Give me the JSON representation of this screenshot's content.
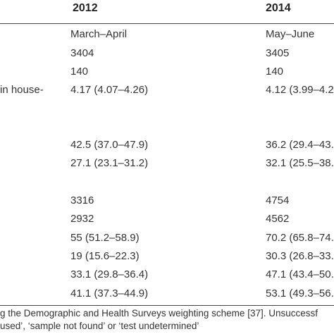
{
  "table": {
    "columns": [
      "2012",
      "2014"
    ],
    "fragment_label": "in house-",
    "rows": [
      {
        "c2012": "March–April",
        "c2014": "May–June"
      },
      {
        "c2012": "3404",
        "c2014": "3405"
      },
      {
        "c2012": "140",
        "c2014": "140"
      },
      {
        "c2012": "4.17 (4.07–4.26)",
        "c2014": "4.12 (3.99–4.2"
      },
      {
        "c2012": "42.5 (37.0–47.9)",
        "c2014": "36.2 (29.4–43."
      },
      {
        "c2012": "27.1 (23.1–31.2)",
        "c2014": "32.1 (25.5–38."
      },
      {
        "c2012": "3316",
        "c2014": "4754"
      },
      {
        "c2012": "2932",
        "c2014": "4562"
      },
      {
        "c2012": "55 (51.2–58.9)",
        "c2014": "70.2 (65.8–74."
      },
      {
        "c2012": "19 (15.6–22.3)",
        "c2014": "30.3 (26.8–33."
      },
      {
        "c2012": "33.1 (29.8–36.4)",
        "c2014": "47.1 (43.4–50."
      },
      {
        "c2012": "41.1 (37.3–44.9)",
        "c2014": "53.1 (49.3–56."
      }
    ]
  },
  "footnote": {
    "line1": "g the Demographic and Health Surveys weighting scheme [37]. Unsuccessf",
    "line2": "used’, ‘sample not found’ or ‘test undetermined’"
  }
}
